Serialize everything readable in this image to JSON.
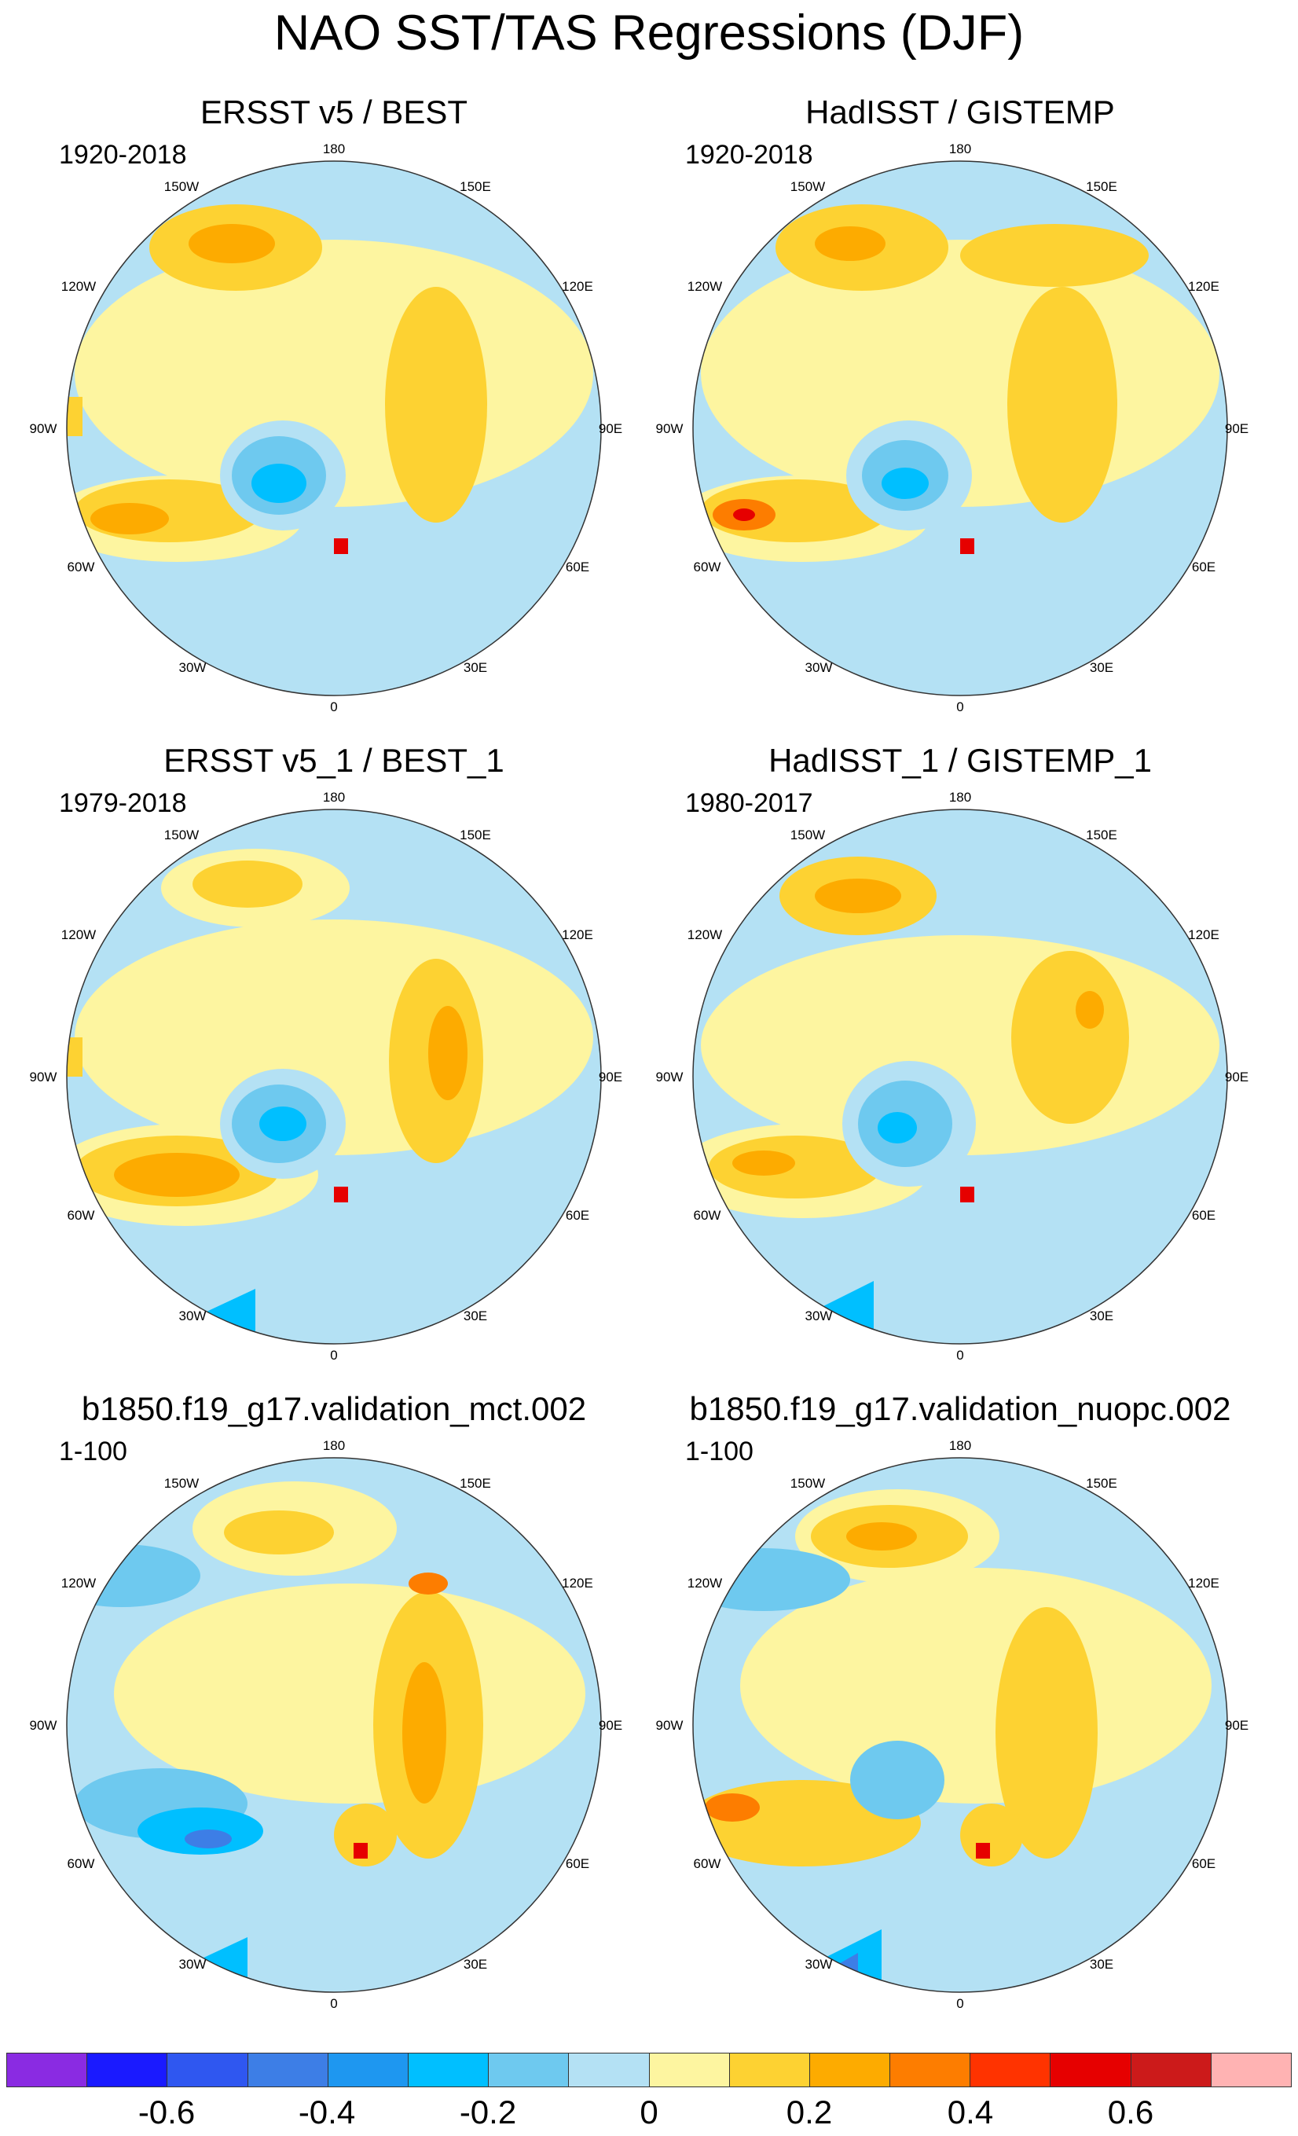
{
  "title": "NAO SST/TAS Regressions (DJF)",
  "lon_labels": [
    "180",
    "150E",
    "120E",
    "90E",
    "60E",
    "30E",
    "0",
    "30W",
    "60W",
    "90W",
    "120W",
    "150W"
  ],
  "panels": [
    {
      "title": "ERSST v5 / BEST",
      "period": "1920-2018"
    },
    {
      "title": "HadISST / GISTEMP",
      "period": "1920-2018"
    },
    {
      "title": "ERSST v5_1 / BEST_1",
      "period": "1979-2018"
    },
    {
      "title": "HadISST_1 / GISTEMP_1",
      "period": "1980-2017"
    },
    {
      "title": "b1850.f19_g17.validation_mct.002",
      "period": "1-100"
    },
    {
      "title": "b1850.f19_g17.validation_nuopc.002",
      "period": "1-100"
    }
  ],
  "colorbar": {
    "colors": [
      "#8a2be2",
      "#1a1aff",
      "#2f57f0",
      "#3d7ee6",
      "#1e97f0",
      "#00bfff",
      "#6ec9ef",
      "#b4e1f4",
      "#fdf5a0",
      "#fdd232",
      "#fdab00",
      "#fd7d00",
      "#ff3300",
      "#e60000",
      "#cc1a1a",
      "#ffb3b3"
    ],
    "tick_labels": [
      "-0.6",
      "-0.4",
      "-0.2",
      "0",
      "0.2",
      "0.4",
      "0.6"
    ]
  }
}
